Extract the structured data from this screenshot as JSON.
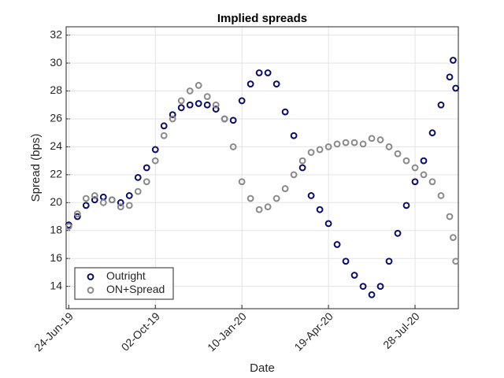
{
  "chart_data": {
    "type": "scatter",
    "title": "Implied spreads",
    "x_label": "Date",
    "y_label": "Spread (bps)",
    "x": [
      "2019-06-24",
      "2019-07-04",
      "2019-07-14",
      "2019-07-24",
      "2019-08-03",
      "2019-08-13",
      "2019-08-23",
      "2019-09-02",
      "2019-09-12",
      "2019-09-22",
      "2019-10-02",
      "2019-10-12",
      "2019-10-22",
      "2019-11-01",
      "2019-11-11",
      "2019-11-21",
      "2019-12-01",
      "2019-12-11",
      "2019-12-21",
      "2019-12-31",
      "2020-01-10",
      "2020-01-20",
      "2020-01-30",
      "2020-02-09",
      "2020-02-19",
      "2020-02-29",
      "2020-03-10",
      "2020-03-20",
      "2020-03-30",
      "2020-04-09",
      "2020-04-19",
      "2020-04-29",
      "2020-05-09",
      "2020-05-19",
      "2020-05-29",
      "2020-06-08",
      "2020-06-18",
      "2020-06-28",
      "2020-07-08",
      "2020-07-18",
      "2020-07-28",
      "2020-08-07",
      "2020-08-17",
      "2020-08-27",
      "2020-09-06",
      "2020-09-10",
      "2020-09-13"
    ],
    "series": [
      {
        "name": "Outright",
        "color": "#0c0c6b",
        "values": [
          18.4,
          19.0,
          19.8,
          20.2,
          20.4,
          20.2,
          20.0,
          20.5,
          21.8,
          22.5,
          23.8,
          25.5,
          26.3,
          26.8,
          27.0,
          27.1,
          27.0,
          26.7,
          26.0,
          25.9,
          27.3,
          28.5,
          29.3,
          29.3,
          28.5,
          26.5,
          24.8,
          22.5,
          20.5,
          19.5,
          18.5,
          17.0,
          15.8,
          14.8,
          14.0,
          13.4,
          14.0,
          15.8,
          17.8,
          19.8,
          21.5,
          23.0,
          25.0,
          27.0,
          29.0,
          30.2,
          28.2
        ]
      },
      {
        "name": "ON+Spread",
        "color": "#8a8a8a",
        "values": [
          18.3,
          19.2,
          20.3,
          20.5,
          20.0,
          20.2,
          19.7,
          19.8,
          20.8,
          21.5,
          23.0,
          24.8,
          26.0,
          27.3,
          28.0,
          28.4,
          27.6,
          27.0,
          26.0,
          24.0,
          21.5,
          20.3,
          19.5,
          19.7,
          20.3,
          21.0,
          22.0,
          23.0,
          23.6,
          23.8,
          24.0,
          24.2,
          24.3,
          24.3,
          24.2,
          24.6,
          24.5,
          24.0,
          23.5,
          23.0,
          22.5,
          22.0,
          21.5,
          20.5,
          19.0,
          17.5,
          15.8
        ]
      }
    ],
    "xlim": [
      "2019-06-21",
      "2020-09-16"
    ],
    "xticks": [
      {
        "value": "2019-06-24",
        "label": "24-Jun-19"
      },
      {
        "value": "2019-10-02",
        "label": "02-Oct-19"
      },
      {
        "value": "2020-01-10",
        "label": "10-Jan-20"
      },
      {
        "value": "2020-04-19",
        "label": "19-Apr-20"
      },
      {
        "value": "2020-07-28",
        "label": "28-Jul-20"
      }
    ],
    "ylim": [
      12.4,
      32.6
    ],
    "yticks": [
      14,
      16,
      18,
      20,
      22,
      24,
      26,
      28,
      30,
      32
    ],
    "grid": true,
    "legend": "lower-left"
  }
}
